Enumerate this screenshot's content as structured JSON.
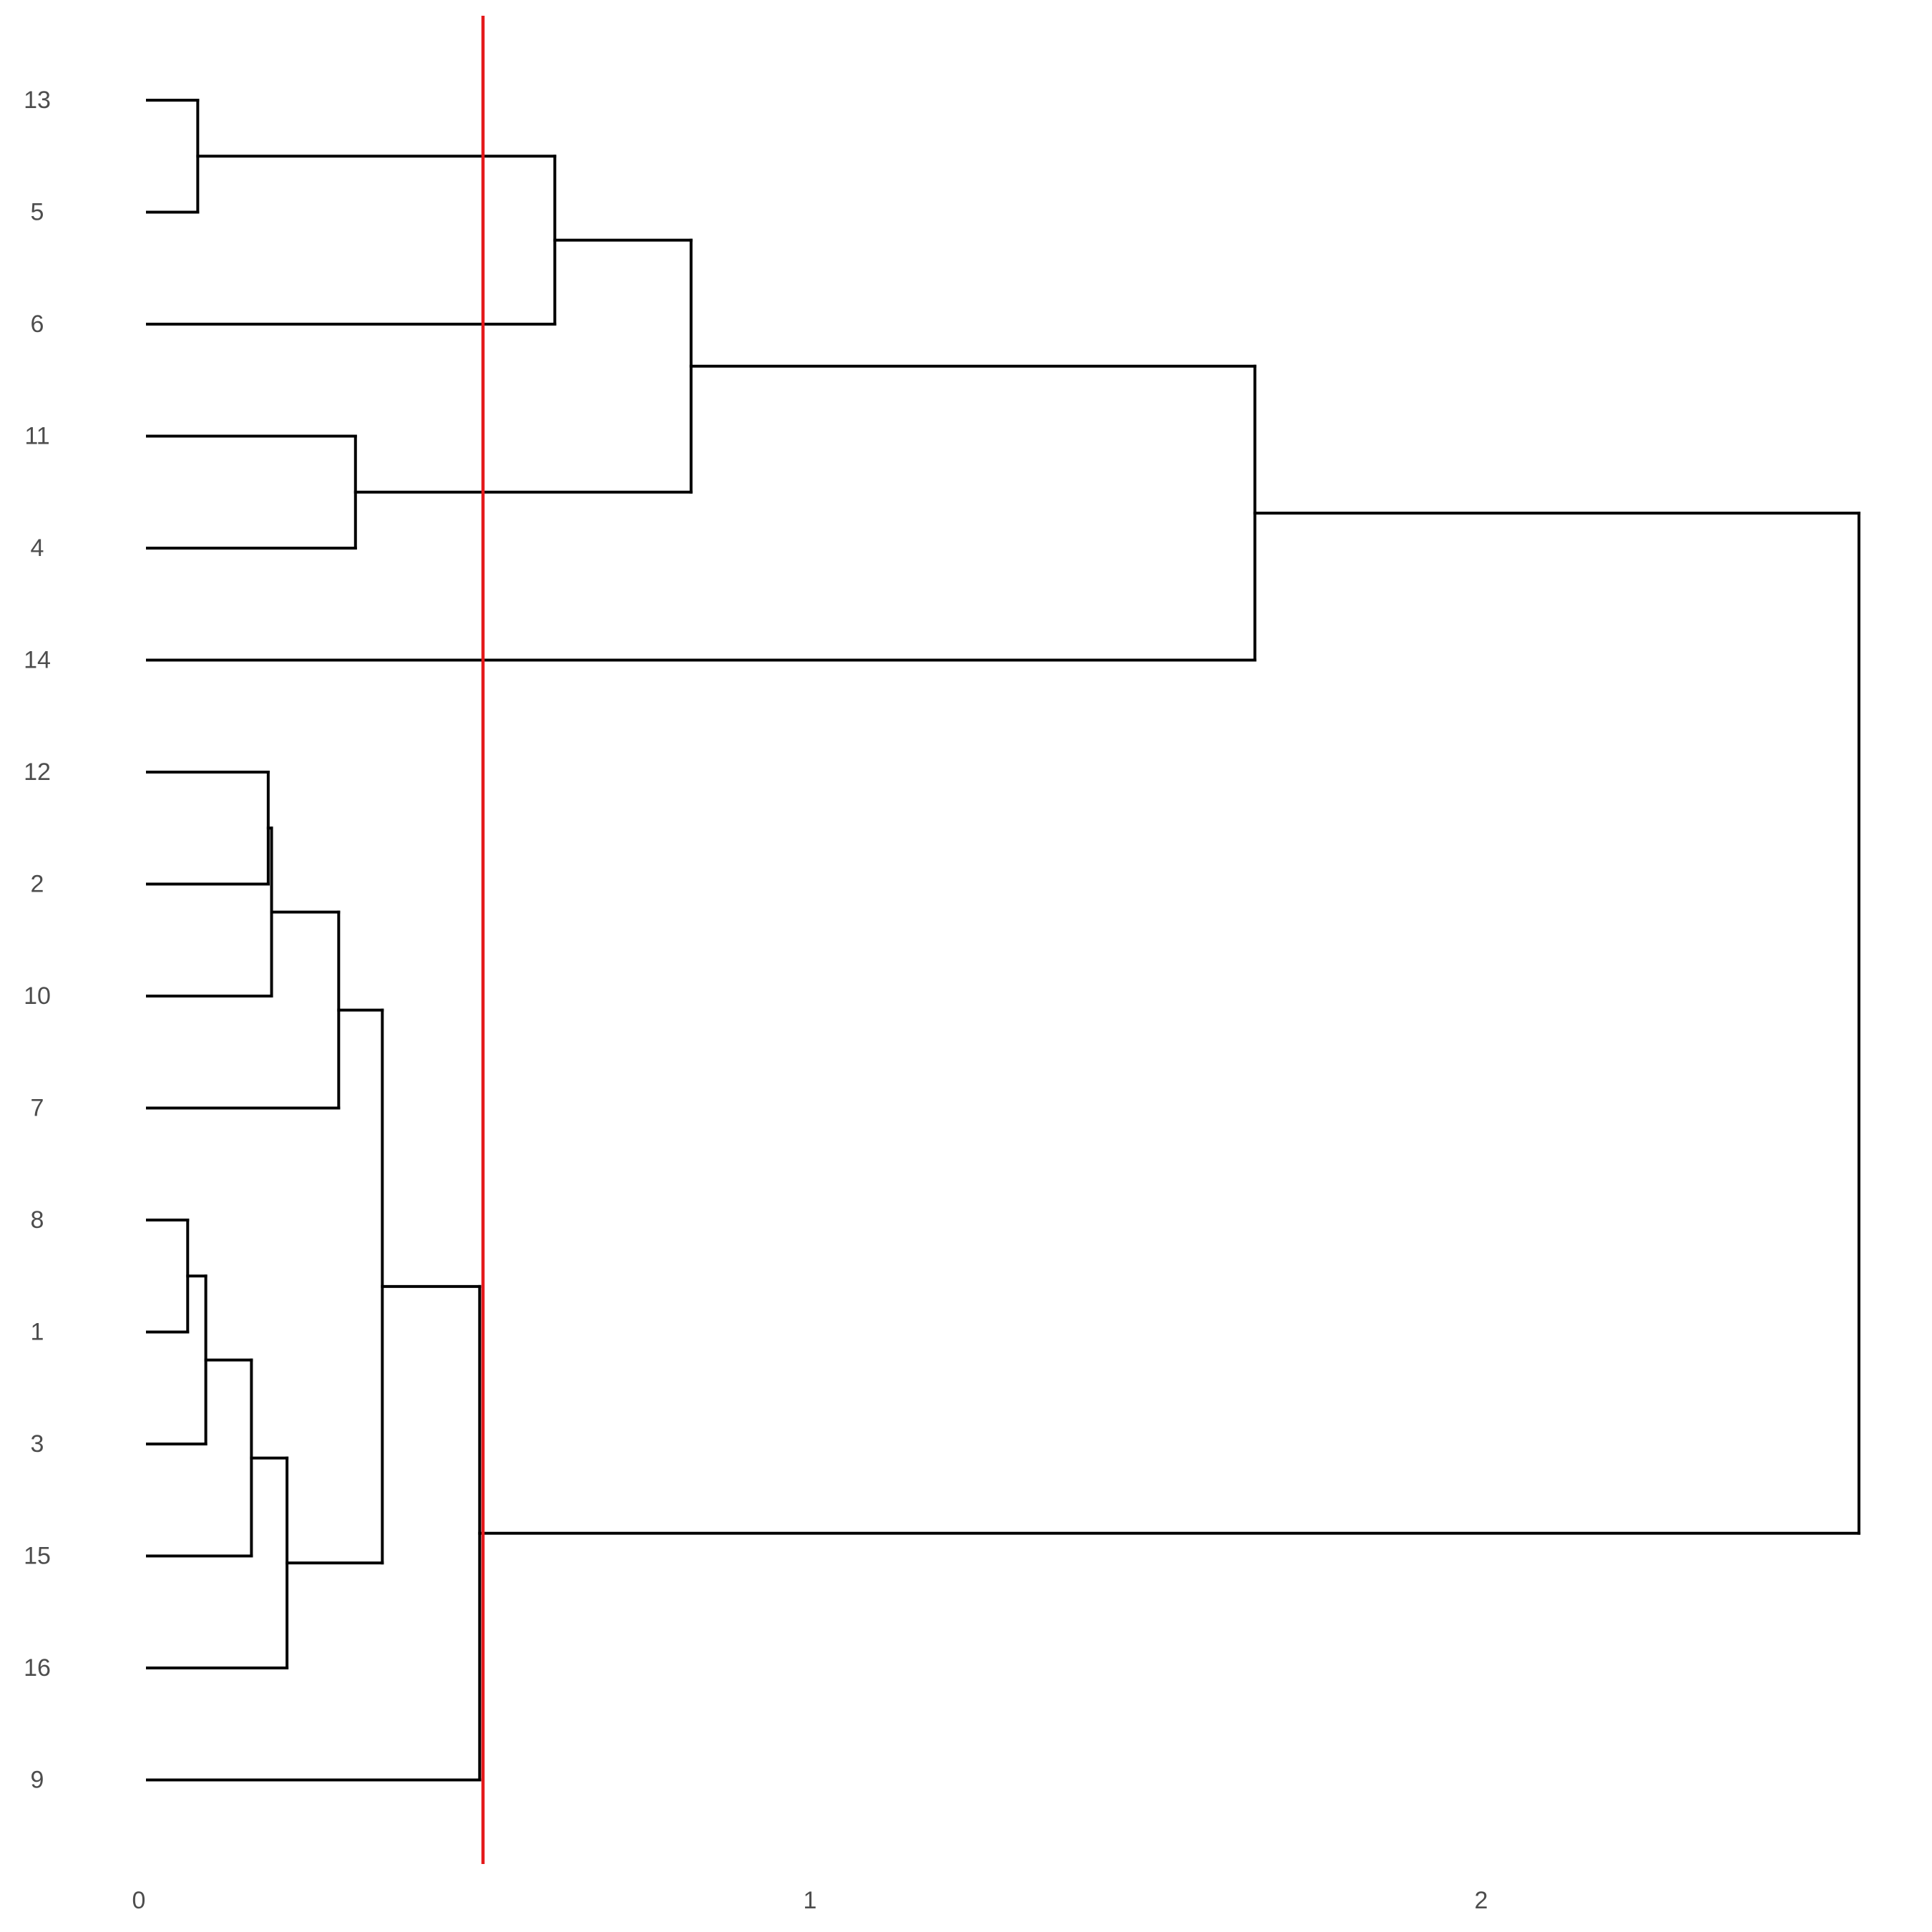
{
  "chart_data": {
    "type": "dendrogram",
    "orientation": "horizontal",
    "leaves": [
      "13",
      "5",
      "6",
      "11",
      "4",
      "14",
      "12",
      "2",
      "10",
      "7",
      "8",
      "1",
      "3",
      "15",
      "16",
      "9"
    ],
    "merges": [
      {
        "a": "12",
        "b": "2",
        "height": 0.18
      },
      {
        "a": "12+2",
        "b": "10",
        "height": 0.185
      },
      {
        "a": "12+2+10",
        "b": "7",
        "height": 0.285
      },
      {
        "a": "8",
        "b": "1",
        "height": 0.06
      },
      {
        "a": "8+1",
        "b": "3",
        "height": 0.087
      },
      {
        "a": "8+1+3",
        "b": "15",
        "height": 0.155
      },
      {
        "a": "8+1+3+15",
        "b": "16",
        "height": 0.208
      },
      {
        "a": "12+2+10+7",
        "b": "8+1+3+15+16",
        "height": 0.35
      },
      {
        "a": "12+2+10+7+8+1+3+15+16",
        "b": "9",
        "height": 0.495
      },
      {
        "a": "13",
        "b": "5",
        "height": 0.075
      },
      {
        "a": "13+5",
        "b": "6",
        "height": 0.607
      },
      {
        "a": "11",
        "b": "4",
        "height": 0.31
      },
      {
        "a": "13+5+6",
        "b": "11+4",
        "height": 0.81
      },
      {
        "a": "13+5+6+11+4",
        "b": "14",
        "height": 1.65
      },
      {
        "a": "13+5+6+11+4+14",
        "b": "12+2+10+7+8+1+3+15+16+9",
        "height": 2.55
      }
    ],
    "cut_height": 0.5,
    "xlim": [
      0,
      2.6
    ],
    "x_ticks": [
      "0",
      "1",
      "2"
    ],
    "x_tick_values": [
      0,
      1,
      2
    ],
    "title": "",
    "xlabel": "",
    "ylabel": "",
    "grid": false,
    "colors": {
      "branches": "#000000",
      "cut_line": "#e41a1c",
      "labels": "#4d4d4d"
    }
  }
}
